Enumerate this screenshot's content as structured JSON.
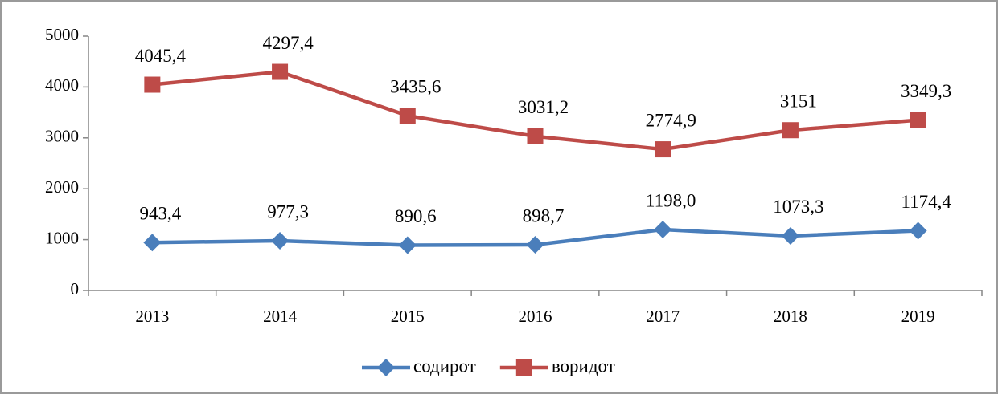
{
  "chart_data": {
    "type": "line",
    "categories": [
      "2013",
      "2014",
      "2015",
      "2016",
      "2017",
      "2018",
      "2019"
    ],
    "series": [
      {
        "name": "содирот",
        "color": "#4a7ebb",
        "marker": "diamond",
        "values": [
          943.4,
          977.3,
          890.6,
          898.7,
          1198.0,
          1073.3,
          1174.4
        ],
        "value_labels": [
          "943,4",
          "977,3",
          "890,6",
          "898,7",
          "1198,0",
          "1073,3",
          "1174,4"
        ]
      },
      {
        "name": "воридот",
        "color": "#be4b48",
        "marker": "square",
        "values": [
          4045.4,
          4297.4,
          3435.6,
          3031.2,
          2774.9,
          3151,
          3349.3
        ],
        "value_labels": [
          "4045,4",
          "4297,4",
          "3435,6",
          "3031,2",
          "2774,9",
          "3151",
          "3349,3"
        ]
      }
    ],
    "ylim": [
      0,
      5000
    ],
    "yticks": [
      0,
      1000,
      2000,
      3000,
      4000,
      5000
    ],
    "grid": false,
    "legend": "bottom"
  }
}
